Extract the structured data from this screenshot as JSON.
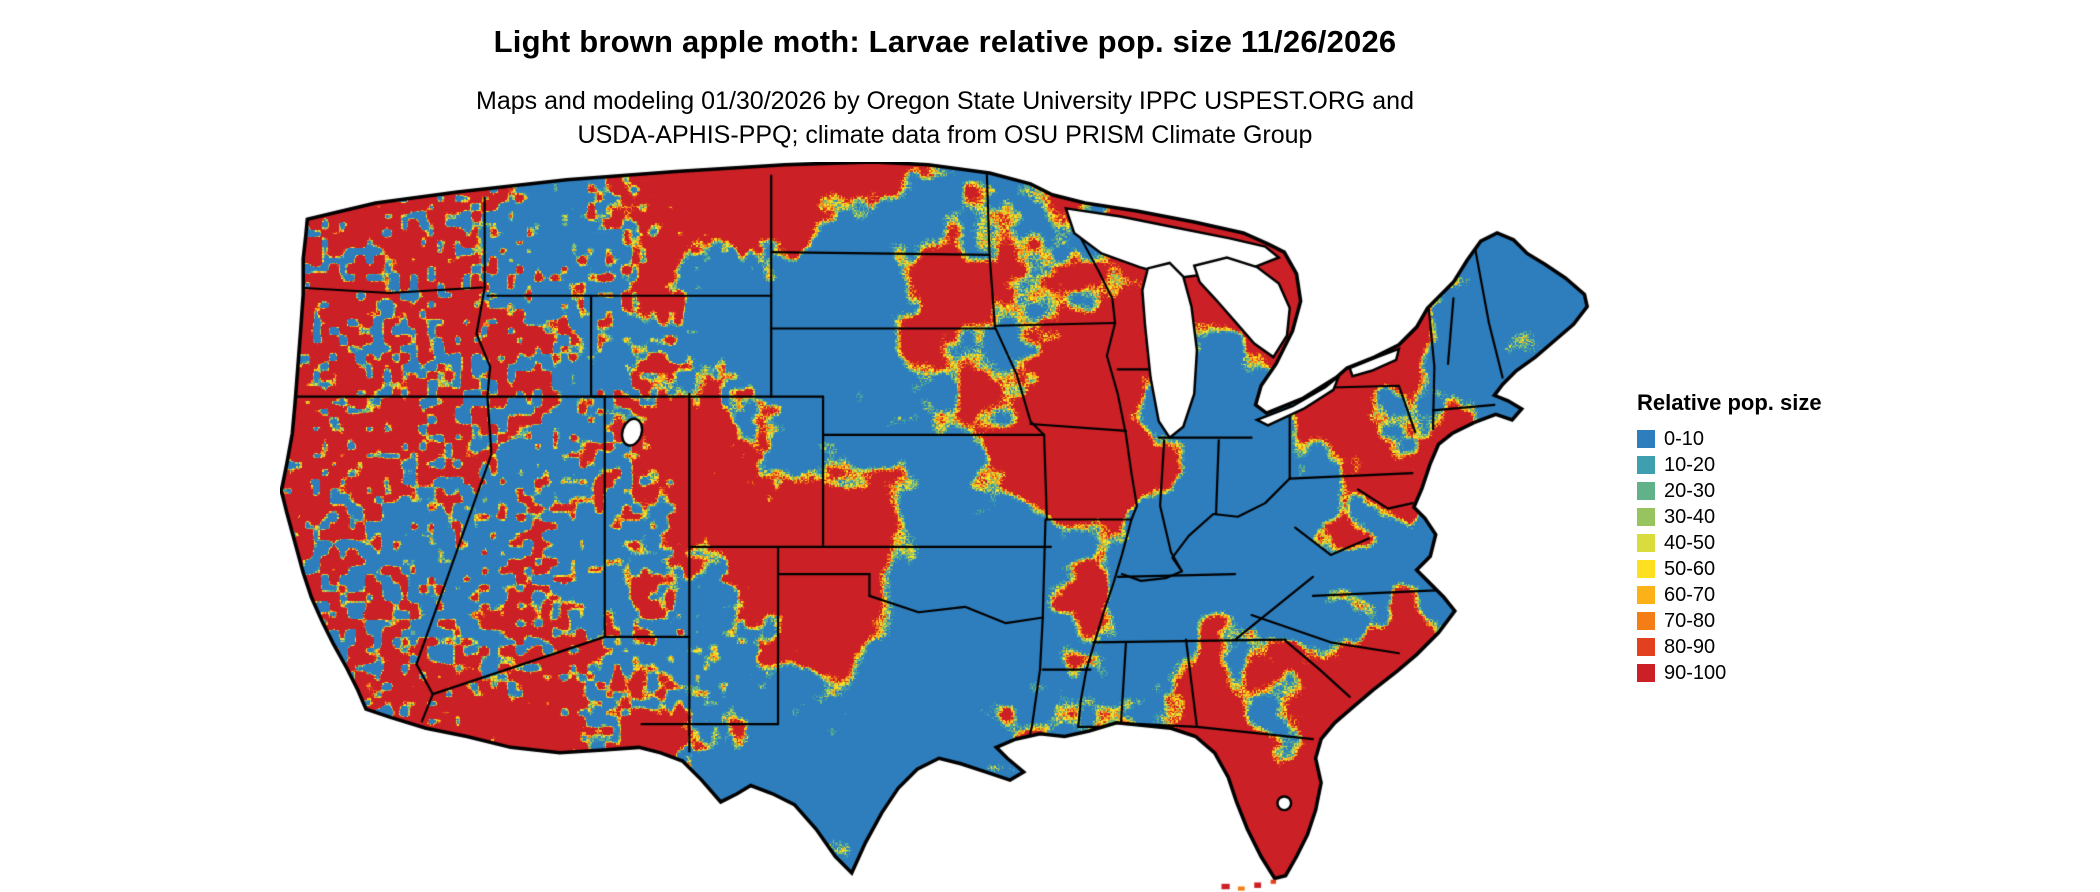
{
  "title": "Light brown apple moth: Larvae relative pop. size 11/26/2026",
  "subtitle": {
    "line1": "Maps and modeling 01/30/2026 by Oregon State University IPPC USPEST.ORG and",
    "line2": "USDA-APHIS-PPQ; climate data from OSU PRISM Climate Group"
  },
  "legend": {
    "title": "Relative pop. size",
    "items": [
      {
        "label": "0-10",
        "color": "#2e7ebd"
      },
      {
        "label": "10-20",
        "color": "#3f9fae"
      },
      {
        "label": "20-30",
        "color": "#61b189"
      },
      {
        "label": "30-40",
        "color": "#98c45f"
      },
      {
        "label": "40-50",
        "color": "#d9dc3d"
      },
      {
        "label": "50-60",
        "color": "#fee021"
      },
      {
        "label": "60-70",
        "color": "#fcb118"
      },
      {
        "label": "70-80",
        "color": "#f57d15"
      },
      {
        "label": "80-90",
        "color": "#e2411f"
      },
      {
        "label": "90-100",
        "color": "#cb2026"
      }
    ]
  },
  "map": {
    "region": "Continental United States",
    "kind": "raster heatmap of relative population size with state borders",
    "water_color": "#ffffff",
    "border_color": "#000000"
  }
}
